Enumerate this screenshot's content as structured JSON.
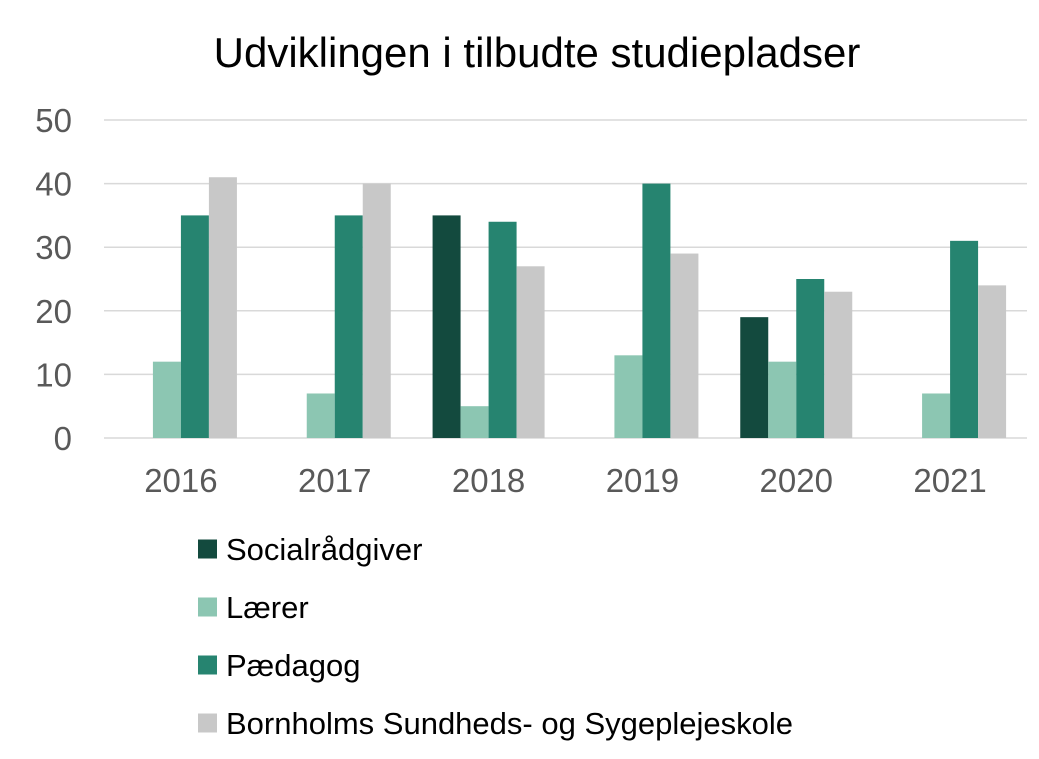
{
  "chart_data": {
    "type": "bar",
    "title": "Udviklingen i tilbudte studiepladser",
    "categories": [
      "2016",
      "2017",
      "2018",
      "2019",
      "2020",
      "2021"
    ],
    "ylim": [
      0,
      50
    ],
    "yticks": [
      0,
      10,
      20,
      30,
      40,
      50
    ],
    "grid": true,
    "legend_position": "bottom",
    "series": [
      {
        "name": "Socialrådgiver",
        "color": "#134a3e",
        "values": [
          null,
          null,
          35,
          null,
          19,
          null
        ]
      },
      {
        "name": "Lærer",
        "color": "#8cc6b2",
        "values": [
          12,
          7,
          5,
          13,
          12,
          7
        ]
      },
      {
        "name": "Pædagog",
        "color": "#268470",
        "values": [
          35,
          35,
          34,
          40,
          25,
          31
        ]
      },
      {
        "name": "Bornholms Sundheds- og Sygeplejeskole",
        "color": "#c8c8c8",
        "values": [
          41,
          40,
          27,
          29,
          23,
          24
        ]
      }
    ]
  }
}
